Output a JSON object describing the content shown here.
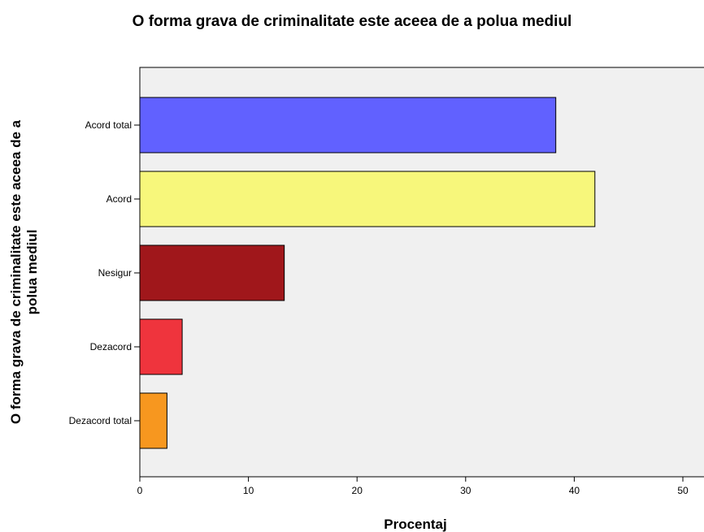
{
  "chart_data": {
    "type": "bar",
    "orientation": "horizontal",
    "title": "O forma grava de criminalitate este aceea de a polua mediul",
    "xlabel": "Procentaj",
    "ylabel_lines": [
      "O forma grava de criminalitate este aceea de a",
      "polua mediul"
    ],
    "categories": [
      "Acord total",
      "Acord",
      "Nesigur",
      "Dezacord",
      "Dezacord total"
    ],
    "values": [
      38.3,
      41.9,
      13.3,
      3.9,
      2.5
    ],
    "colors": [
      "#6161ff",
      "#f7f77b",
      "#a0171b",
      "#ef343d",
      "#f7971f"
    ],
    "xlim": [
      0,
      50
    ],
    "xticks": [
      0,
      10,
      20,
      30,
      40,
      50
    ],
    "plot_background": "#f0f0f0",
    "grid": false,
    "legend": "none"
  }
}
